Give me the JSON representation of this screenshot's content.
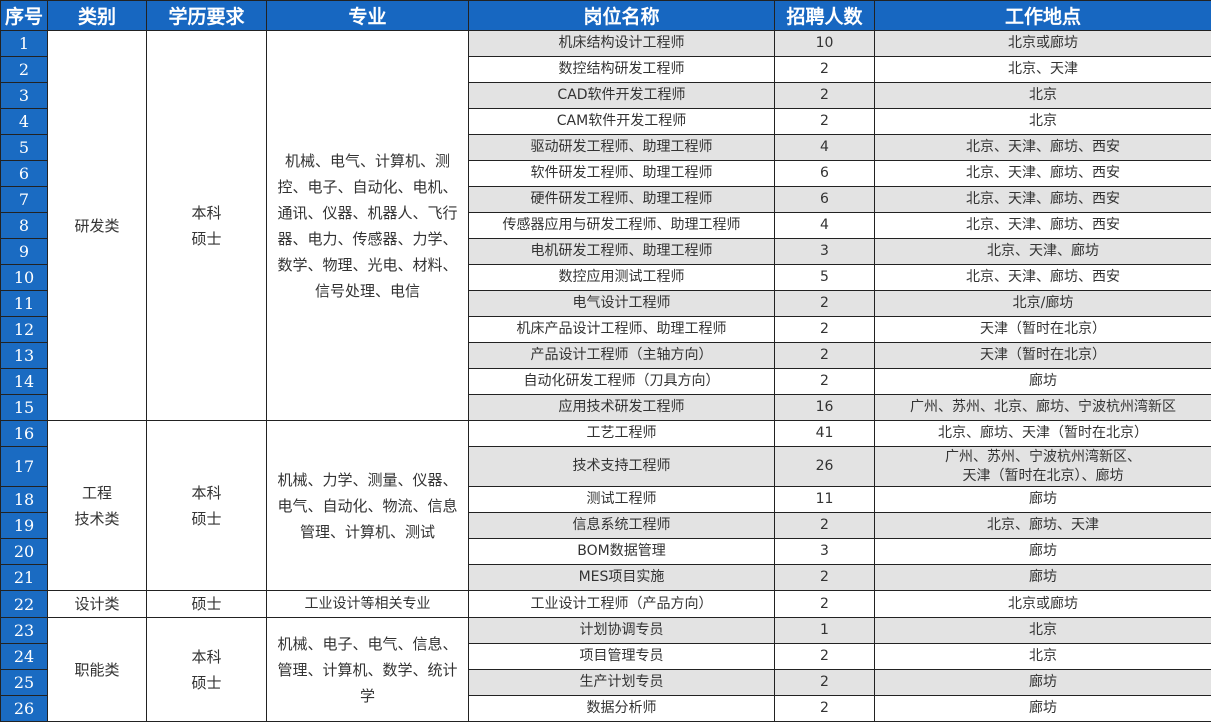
{
  "colors": {
    "header_bg": "#1767c1",
    "seq_bg": "#1a6bc2",
    "alt_row_bg": "#e3e3e3"
  },
  "headers": [
    "序号",
    "类别",
    "学历要求",
    "专业",
    "岗位名称",
    "招聘人数",
    "工作地点"
  ],
  "groups": [
    {
      "category": "研发类",
      "education": "本科\n硕士",
      "majors": "机械、电气、计算机、测控、电子、自动化、电机、通讯、仪器、机器人、飞行器、电力、传感器、力学、数学、物理、光电、材料、信号处理、电信",
      "rows": [
        {
          "no": "1",
          "position": "机床结构设计工程师",
          "count": "10",
          "location": "北京或廊坊"
        },
        {
          "no": "2",
          "position": "数控结构研发工程师",
          "count": "2",
          "location": "北京、天津"
        },
        {
          "no": "3",
          "position": "CAD软件开发工程师",
          "count": "2",
          "location": "北京"
        },
        {
          "no": "4",
          "position": "CAM软件开发工程师",
          "count": "2",
          "location": "北京"
        },
        {
          "no": "5",
          "position": "驱动研发工程师、助理工程师",
          "count": "4",
          "location": "北京、天津、廊坊、西安"
        },
        {
          "no": "6",
          "position": "软件研发工程师、助理工程师",
          "count": "6",
          "location": "北京、天津、廊坊、西安"
        },
        {
          "no": "7",
          "position": "硬件研发工程师、助理工程师",
          "count": "6",
          "location": "北京、天津、廊坊、西安"
        },
        {
          "no": "8",
          "position": "传感器应用与研发工程师、助理工程师",
          "count": "4",
          "location": "北京、天津、廊坊、西安"
        },
        {
          "no": "9",
          "position": "电机研发工程师、助理工程师",
          "count": "3",
          "location": "北京、天津、廊坊"
        },
        {
          "no": "10",
          "position": "数控应用测试工程师",
          "count": "5",
          "location": "北京、天津、廊坊、西安"
        },
        {
          "no": "11",
          "position": "电气设计工程师",
          "count": "2",
          "location": "北京/廊坊"
        },
        {
          "no": "12",
          "position": "机床产品设计工程师、助理工程师",
          "count": "2",
          "location": "天津（暂时在北京）"
        },
        {
          "no": "13",
          "position": "产品设计工程师（主轴方向）",
          "count": "2",
          "location": "天津（暂时在北京）"
        },
        {
          "no": "14",
          "position": "自动化研发工程师（刀具方向）",
          "count": "2",
          "location": "廊坊"
        },
        {
          "no": "15",
          "position": "应用技术研发工程师",
          "count": "16",
          "location": "广州、苏州、北京、廊坊、宁波杭州湾新区"
        }
      ]
    },
    {
      "category": "工程\n技术类",
      "education": "本科\n硕士",
      "majors": "机械、力学、测量、仪器、电气、自动化、物流、信息管理、计算机、测试",
      "rows": [
        {
          "no": "16",
          "position": "工艺工程师",
          "count": "41",
          "location": "北京、廊坊、天津（暂时在北京）"
        },
        {
          "no": "17",
          "position": "技术支持工程师",
          "count": "26",
          "location": "广州、苏州、宁波杭州湾新区、\n天津（暂时在北京）、廊坊"
        },
        {
          "no": "18",
          "position": "测试工程师",
          "count": "11",
          "location": "廊坊"
        },
        {
          "no": "19",
          "position": "信息系统工程师",
          "count": "2",
          "location": "北京、廊坊、天津"
        },
        {
          "no": "20",
          "position": "BOM数据管理",
          "count": "3",
          "location": "廊坊"
        },
        {
          "no": "21",
          "position": "MES项目实施",
          "count": "2",
          "location": "廊坊"
        }
      ]
    },
    {
      "category": "设计类",
      "education": "硕士",
      "majors": "工业设计等相关专业",
      "rows": [
        {
          "no": "22",
          "position": "工业设计工程师（产品方向）",
          "count": "2",
          "location": "北京或廊坊"
        }
      ]
    },
    {
      "category": "职能类",
      "education": "本科\n硕士",
      "majors": "机械、电子、电气、信息、管理、计算机、数学、统计学",
      "rows": [
        {
          "no": "23",
          "position": "计划协调专员",
          "count": "1",
          "location": "北京"
        },
        {
          "no": "24",
          "position": "项目管理专员",
          "count": "2",
          "location": "北京"
        },
        {
          "no": "25",
          "position": "生产计划专员",
          "count": "2",
          "location": "廊坊"
        },
        {
          "no": "26",
          "position": "数据分析师",
          "count": "2",
          "location": "廊坊"
        }
      ]
    }
  ]
}
